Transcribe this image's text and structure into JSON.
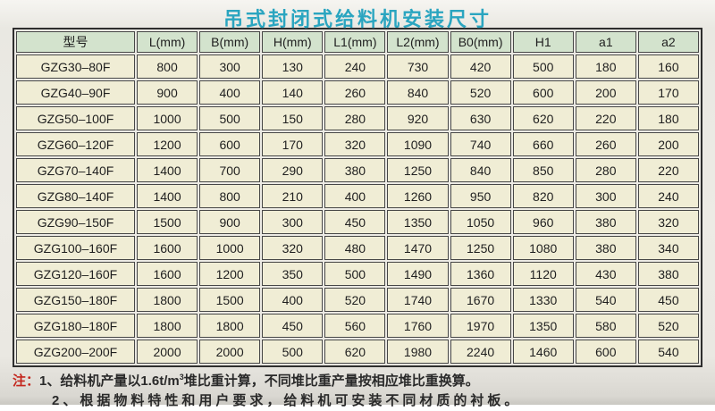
{
  "page": {
    "title": "吊式封闭式给料机安装尺寸"
  },
  "table": {
    "columns": [
      "型号",
      "L(mm)",
      "B(mm)",
      "H(mm)",
      "L1(mm)",
      "L2(mm)",
      "B0(mm)",
      "H1",
      "a1",
      "a2"
    ],
    "rows": [
      [
        "GZG30–80F",
        "800",
        "300",
        "130",
        "240",
        "730",
        "420",
        "500",
        "180",
        "160"
      ],
      [
        "GZG40–90F",
        "900",
        "400",
        "140",
        "260",
        "840",
        "520",
        "600",
        "200",
        "170"
      ],
      [
        "GZG50–100F",
        "1000",
        "500",
        "150",
        "280",
        "920",
        "630",
        "620",
        "220",
        "180"
      ],
      [
        "GZG60–120F",
        "1200",
        "600",
        "170",
        "320",
        "1090",
        "740",
        "660",
        "260",
        "200"
      ],
      [
        "GZG70–140F",
        "1400",
        "700",
        "290",
        "380",
        "1250",
        "840",
        "850",
        "280",
        "220"
      ],
      [
        "GZG80–140F",
        "1400",
        "800",
        "210",
        "400",
        "1260",
        "950",
        "820",
        "300",
        "240"
      ],
      [
        "GZG90–150F",
        "1500",
        "900",
        "300",
        "450",
        "1350",
        "1050",
        "960",
        "380",
        "320"
      ],
      [
        "GZG100–160F",
        "1600",
        "1000",
        "320",
        "480",
        "1470",
        "1250",
        "1080",
        "380",
        "340"
      ],
      [
        "GZG120–160F",
        "1600",
        "1200",
        "350",
        "500",
        "1490",
        "1360",
        "1120",
        "430",
        "380"
      ],
      [
        "GZG150–180F",
        "1800",
        "1500",
        "400",
        "520",
        "1740",
        "1670",
        "1330",
        "540",
        "450"
      ],
      [
        "GZG180–180F",
        "1800",
        "1800",
        "450",
        "560",
        "1760",
        "1970",
        "1350",
        "580",
        "520"
      ],
      [
        "GZG200–200F",
        "2000",
        "2000",
        "500",
        "620",
        "1980",
        "2240",
        "1460",
        "600",
        "540"
      ]
    ]
  },
  "notes": {
    "label": "注：",
    "note1_pre": "1、给料机产量以1.6t/m",
    "note1_sup": "3",
    "note1_post": "堆比重计算，不同堆比重产量按相应堆比重换算。",
    "note2": "2、根据物料特性和用户要求，给料机可安装不同材质的衬板。"
  },
  "colors": {
    "title": "#2aa5c0",
    "header_bg": "#d3e3cd",
    "cell_bg": "#f0edd5",
    "border": "#474747",
    "note_label": "#c4261d"
  }
}
